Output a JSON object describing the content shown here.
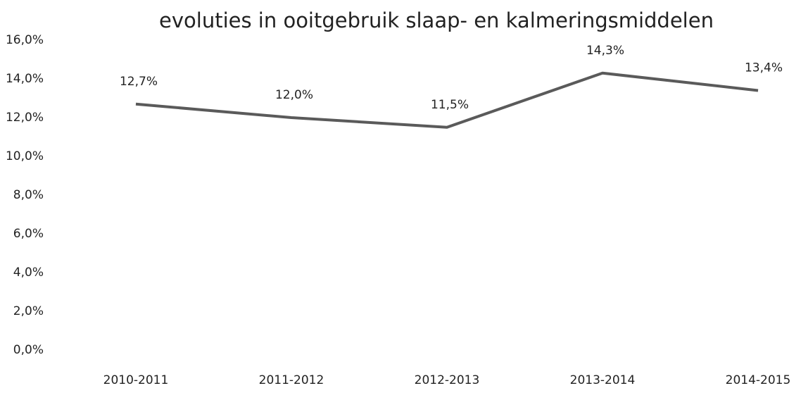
{
  "chart_data": {
    "type": "line",
    "title": "evoluties in ooitgebruik slaap- en kalmeringsmiddelen",
    "categories": [
      "2010-2011",
      "2011-2012",
      "2012-2013",
      "2013-2014",
      "2014-2015"
    ],
    "values": [
      12.7,
      12.0,
      11.5,
      14.3,
      13.4
    ],
    "value_labels": [
      "12,7%",
      "12,0%",
      "11,5%",
      "14,3%",
      "13,4%"
    ],
    "color": "#5a5a5a",
    "ylim": [
      0,
      16
    ],
    "yticks": [
      {
        "value": 0,
        "label": "0,0%"
      },
      {
        "value": 2,
        "label": "2,0%"
      },
      {
        "value": 4,
        "label": "4,0%"
      },
      {
        "value": 6,
        "label": "6,0%"
      },
      {
        "value": 8,
        "label": "8,0%"
      },
      {
        "value": 10,
        "label": "10,0%"
      },
      {
        "value": 12,
        "label": "12,0%"
      },
      {
        "value": 14,
        "label": "14,0%"
      },
      {
        "value": 16,
        "label": "16,0%"
      }
    ],
    "grid": false
  }
}
